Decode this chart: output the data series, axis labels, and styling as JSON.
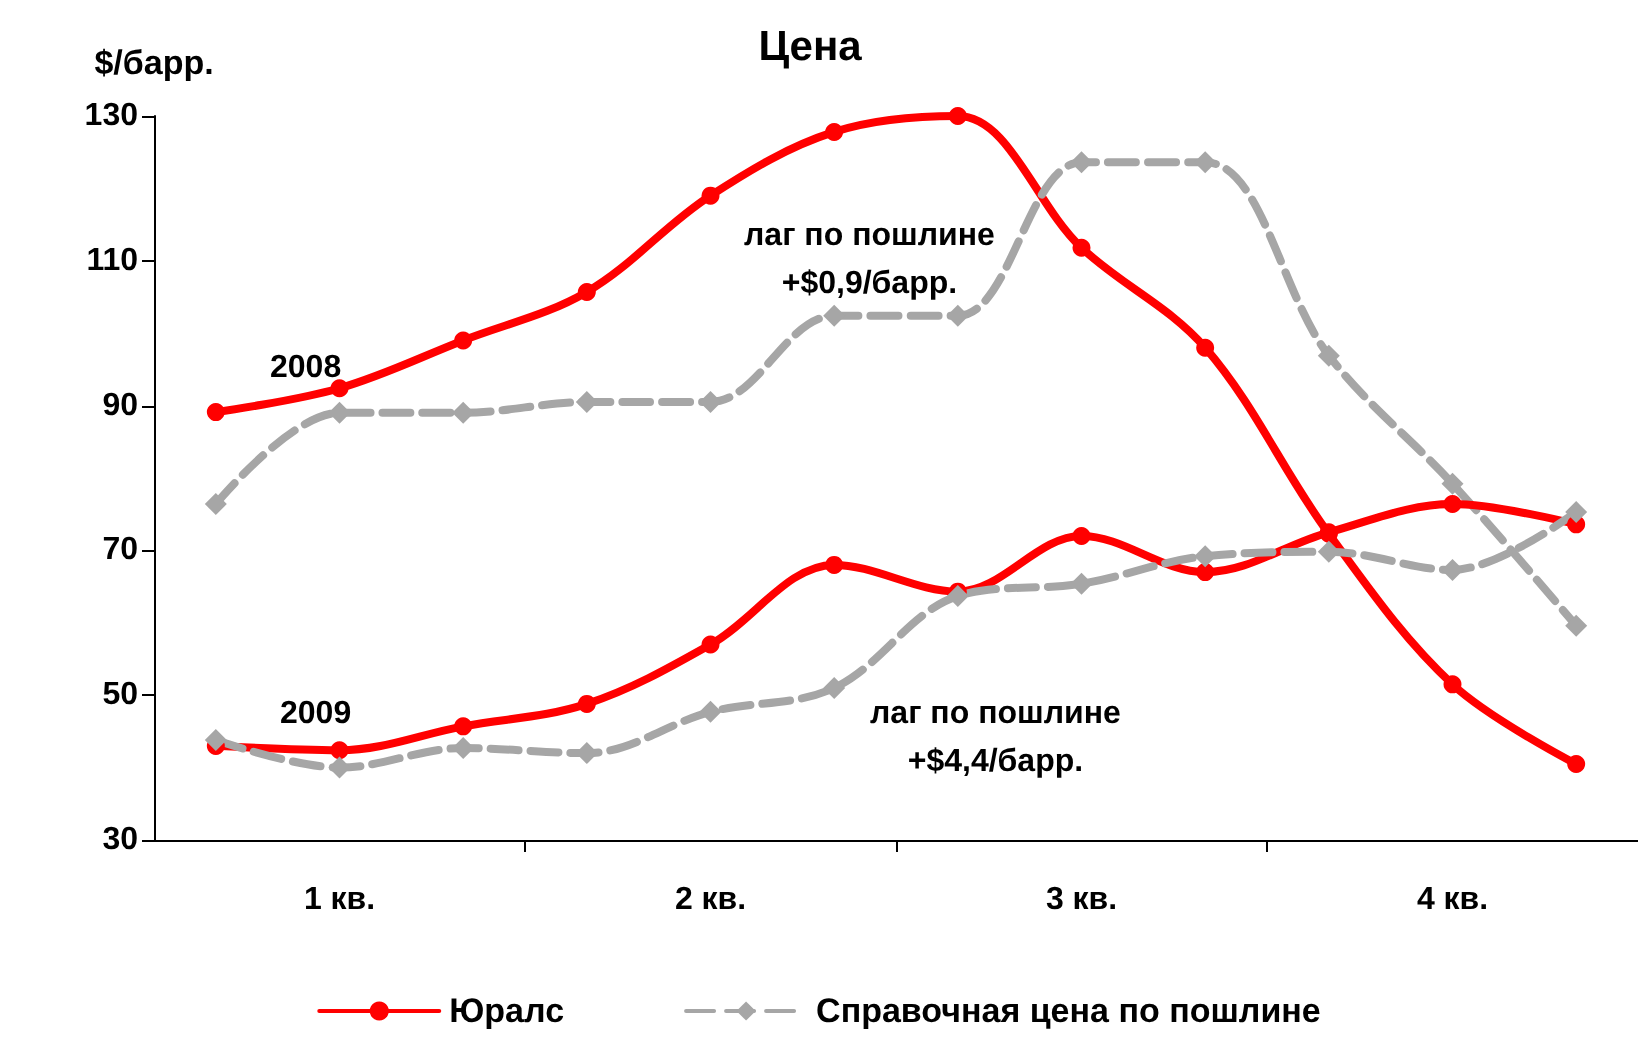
{
  "chart_data": {
    "type": "line",
    "title": "Цена",
    "ylabel": "$/барр.",
    "categories": [
      null,
      "1 кв.",
      null,
      null,
      "2 кв.",
      null,
      null,
      "3 кв.",
      null,
      null,
      "4 кв.",
      null
    ],
    "ylim": [
      30,
      130
    ],
    "yticks": [
      30,
      50,
      70,
      90,
      110,
      130
    ],
    "grid": false,
    "legend": "bottom",
    "series": [
      {
        "name": "Юралс",
        "color": "#ff0000",
        "marker": "circle",
        "line_style": "solid",
        "values": [
          89.1,
          92.4,
          99,
          105.7,
          119,
          127.8,
          130,
          111.8,
          98,
          72.3,
          51.5,
          40.5
        ]
      },
      {
        "name": "Справочная цена по пошлине",
        "color": "#a6a6a6",
        "marker": "diamond",
        "line_style": "dashed",
        "values": [
          76.4,
          89,
          89,
          90.5,
          90.5,
          102.4,
          102.4,
          123.6,
          123.6,
          96.9,
          79.2,
          59.6
        ]
      },
      {
        "color": "#ff0000",
        "marker": "circle",
        "line_style": "solid",
        "values": [
          43,
          42.4,
          45.7,
          48.8,
          57,
          68,
          64.3,
          72,
          67,
          72.5,
          76.4,
          73.6
        ]
      },
      {
        "color": "#a6a6a6",
        "marker": "diamond",
        "line_style": "dashed",
        "values": [
          43.8,
          40,
          42.7,
          42,
          47.7,
          51,
          63.7,
          65.4,
          69.2,
          69.8,
          67.3,
          75.3
        ]
      }
    ],
    "annotations": [
      "2008",
      "лаг по пошлине\n+$0,9/барр.",
      "2009",
      "лаг по пошлине\n+$4,4/барр."
    ]
  }
}
